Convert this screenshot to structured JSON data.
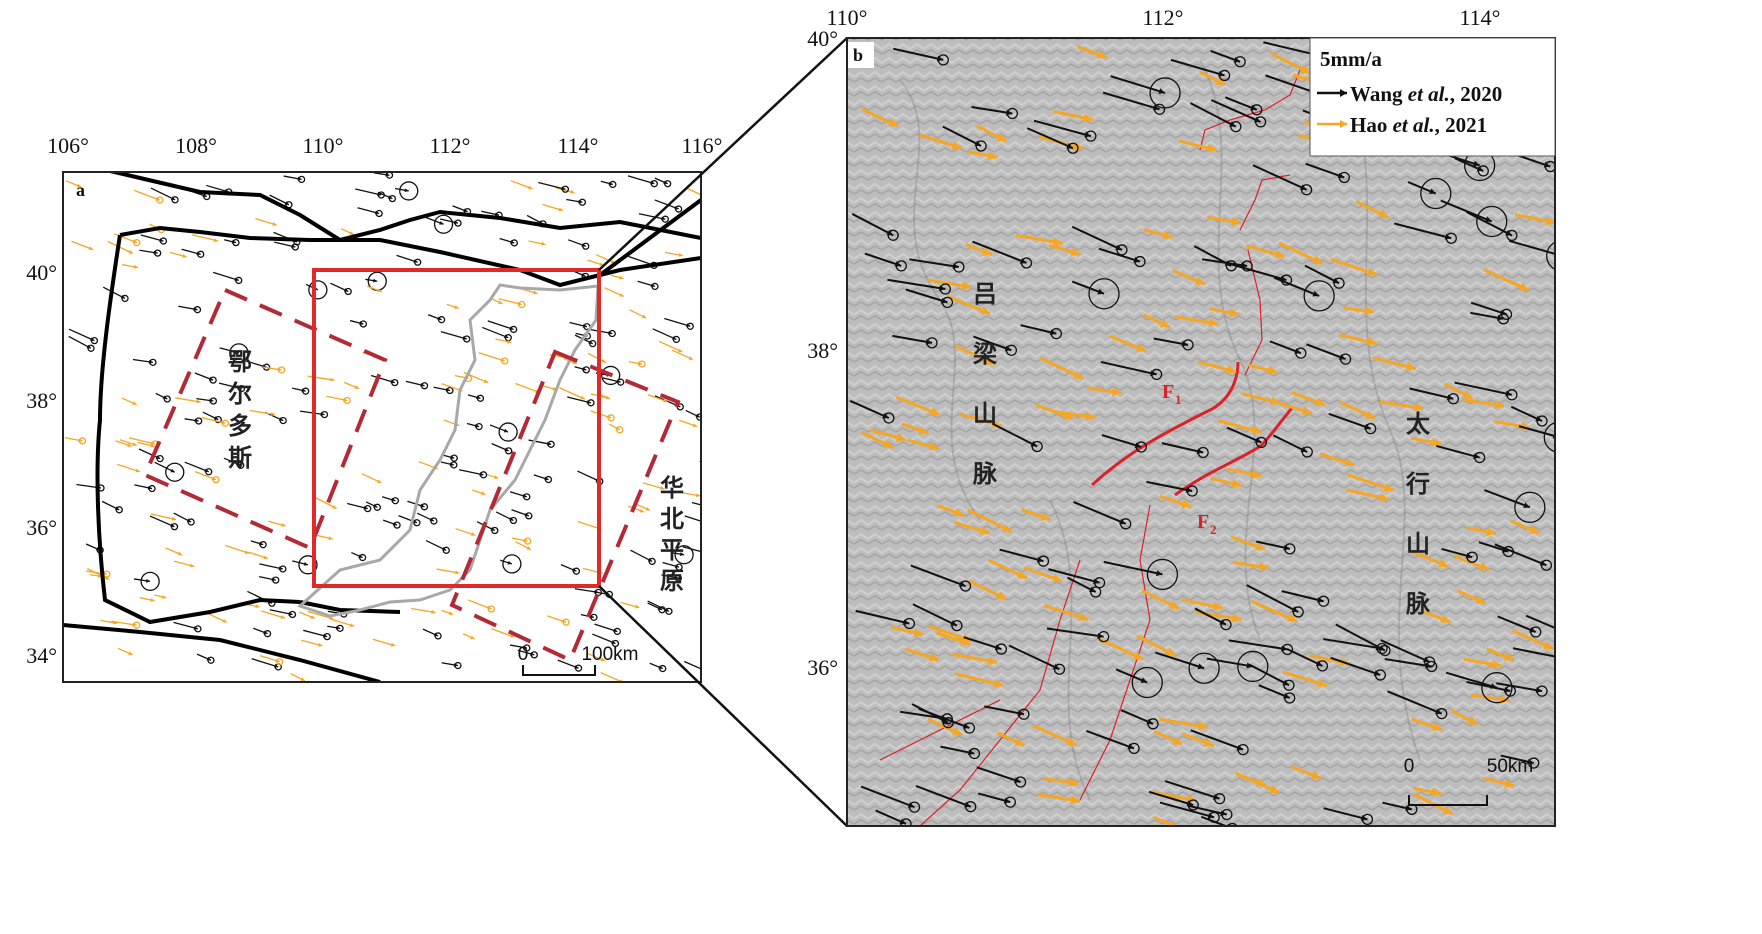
{
  "panel_a": {
    "letter": "a",
    "lon_ticks": [
      "106°",
      "108°",
      "110°",
      "112°",
      "114°",
      "116°"
    ],
    "lat_ticks": [
      "40°",
      "38°",
      "36°",
      "34°"
    ],
    "labels": {
      "ordos": [
        "鄂",
        "尔",
        "多",
        "斯"
      ],
      "huabei": [
        "华",
        "北",
        "平",
        "原"
      ]
    },
    "scale": {
      "start": "0",
      "end": "100km"
    }
  },
  "panel_b": {
    "letter": "b",
    "lon_ticks": [
      "110°",
      "112°",
      "114°"
    ],
    "lat_ticks": [
      "40°",
      "38°",
      "36°"
    ],
    "labels": {
      "lvliang": [
        "吕",
        "梁",
        "山",
        "脉"
      ],
      "taihang": [
        "太",
        "行",
        "山",
        "脉"
      ]
    },
    "faults": {
      "f1": "F",
      "f1_sub": "1",
      "f2": "F",
      "f2_sub": "2"
    },
    "legend": {
      "title": "5mm/a",
      "wang": {
        "pre": "Wang ",
        "etal": "et al.",
        "post": ", 2020"
      },
      "hao": {
        "pre": "Hao ",
        "etal": "et al.",
        "post": ", 2021"
      }
    },
    "scale": {
      "start": "0",
      "end": "50km"
    }
  },
  "colors": {
    "gps_wang": "#111111",
    "gps_hao": "#f5a623",
    "box_red": "#e02a2a",
    "dashed_red": "#b22a35",
    "boundary_black": "#000000",
    "shanxi_outline": "#a8a8a8",
    "fault_red": "#d9222a",
    "relief": "#b8b8b8"
  },
  "vectors": {
    "trend": "east-southeast",
    "trend_angle_deg": 18
  }
}
